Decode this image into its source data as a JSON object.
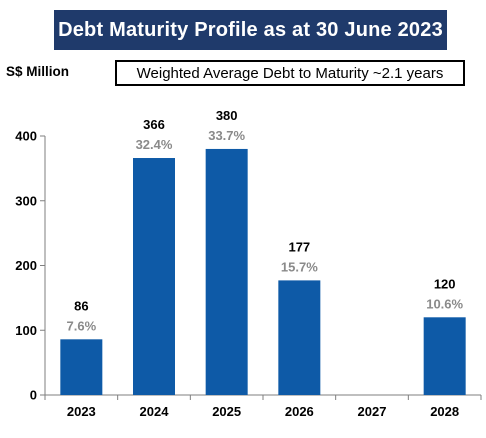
{
  "chart_data": {
    "type": "bar",
    "title": "Debt Maturity Profile as at 30 June 2023",
    "ylabel": "S$ Million",
    "annotation": "Weighted Average Debt to Maturity ~2.1 years",
    "categories": [
      "2023",
      "2024",
      "2025",
      "2026",
      "2027",
      "2028"
    ],
    "values": [
      86,
      366,
      380,
      177,
      null,
      120
    ],
    "value_labels": [
      "86",
      "366",
      "380",
      "177",
      "",
      "120"
    ],
    "percent_labels": [
      "7.6%",
      "32.4%",
      "33.7%",
      "15.7%",
      "",
      "10.6%"
    ],
    "ylim": [
      0,
      400
    ],
    "yticks": [
      "0",
      "100",
      "200",
      "300",
      "400"
    ],
    "grid": false,
    "colors": {
      "bar": "#0e5aa7",
      "title_bg": "#1f3a6b",
      "percent_text": "#8a8a8a"
    }
  }
}
